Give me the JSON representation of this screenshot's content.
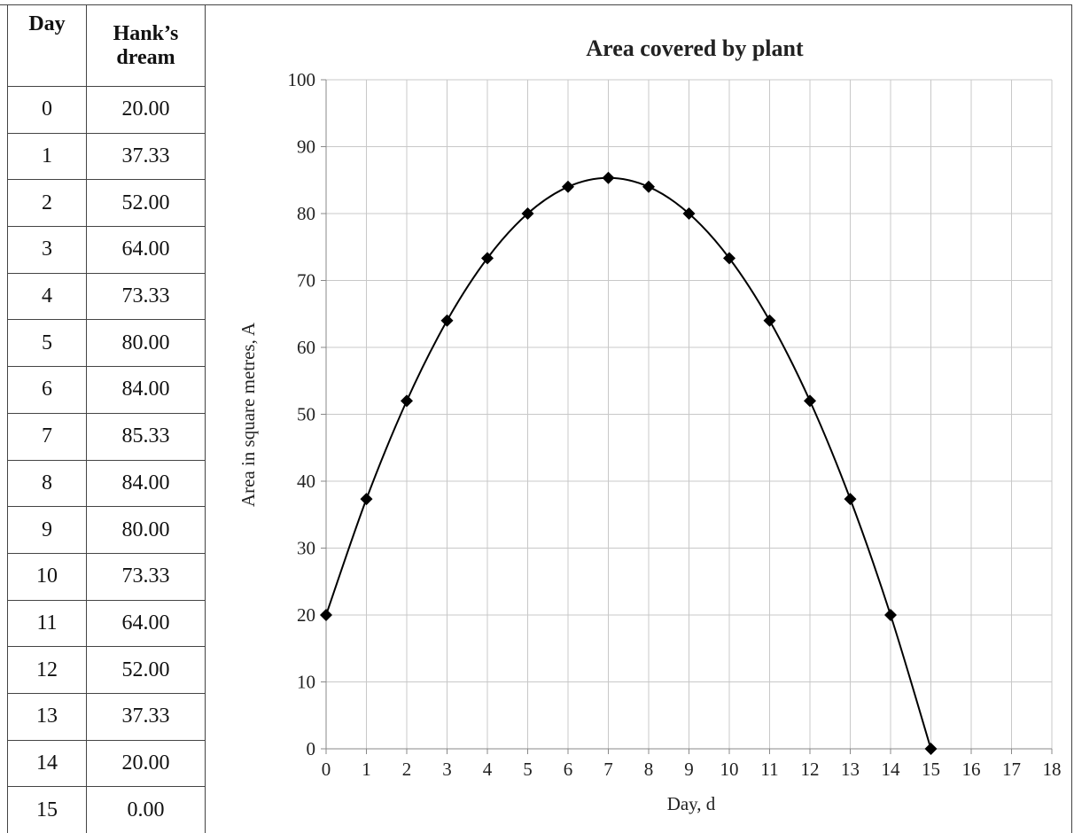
{
  "table": {
    "header": [
      "Day",
      "Hank’s dream"
    ],
    "rows": [
      [
        "0",
        "20.00"
      ],
      [
        "1",
        "37.33"
      ],
      [
        "2",
        "52.00"
      ],
      [
        "3",
        "64.00"
      ],
      [
        "4",
        "73.33"
      ],
      [
        "5",
        "80.00"
      ],
      [
        "6",
        "84.00"
      ],
      [
        "7",
        "85.33"
      ],
      [
        "8",
        "84.00"
      ],
      [
        "9",
        "80.00"
      ],
      [
        "10",
        "73.33"
      ],
      [
        "11",
        "64.00"
      ],
      [
        "12",
        "52.00"
      ],
      [
        "13",
        "37.33"
      ],
      [
        "14",
        "20.00"
      ],
      [
        "15",
        "0.00"
      ]
    ]
  },
  "chart_data": {
    "type": "line",
    "title": "Area covered by plant",
    "x_label": "Day, d",
    "y_label": "Area in square metres, A",
    "x": [
      0,
      1,
      2,
      3,
      4,
      5,
      6,
      7,
      8,
      9,
      10,
      11,
      12,
      13,
      14,
      15
    ],
    "series": [
      {
        "name": "Hank’s dream",
        "color": "#000000",
        "values": [
          20.0,
          37.33,
          52.0,
          64.0,
          73.33,
          80.0,
          84.0,
          85.33,
          84.0,
          80.0,
          73.33,
          64.0,
          52.0,
          37.33,
          20.0,
          0.0
        ]
      }
    ],
    "xlim": [
      0,
      18
    ],
    "xticks": [
      0,
      1,
      2,
      3,
      4,
      5,
      6,
      7,
      8,
      9,
      10,
      11,
      12,
      13,
      14,
      15,
      16,
      17,
      18
    ],
    "ylim": [
      0,
      100
    ],
    "yticks": [
      0,
      10,
      20,
      30,
      40,
      50,
      60,
      70,
      80,
      90,
      100
    ],
    "grid": true,
    "smooth": true
  }
}
